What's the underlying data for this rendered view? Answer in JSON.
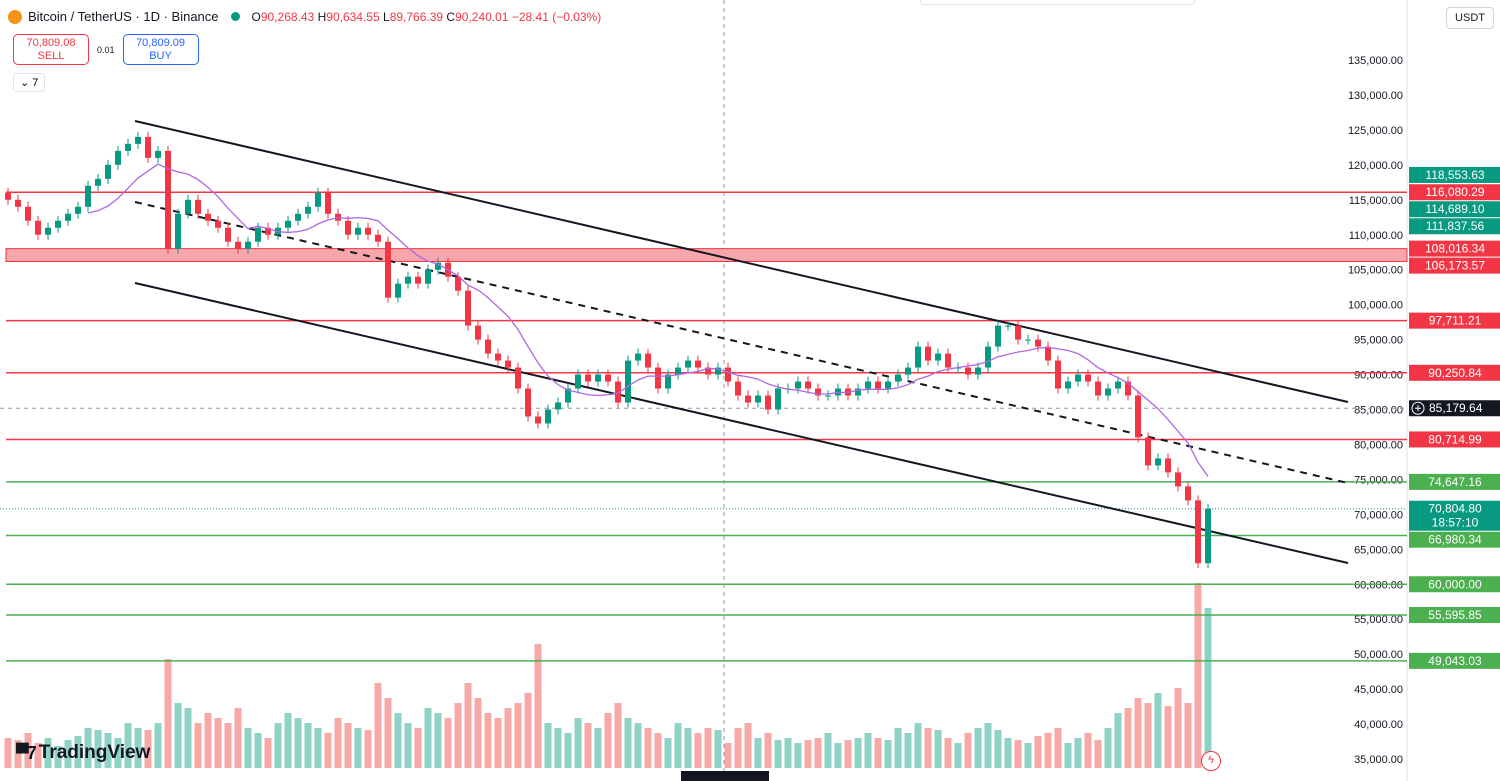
{
  "header": {
    "symbol": "Bitcoin / TetherUS · 1D · Binance",
    "open_label": "O",
    "open": "90,268.43",
    "high_label": "H",
    "high": "90,634.55",
    "low_label": "L",
    "low": "89,766.39",
    "close_label": "C",
    "close": "90,240.01",
    "change": "−28.41 (−0.03%)"
  },
  "trade": {
    "sell_price": "70,809.08",
    "sell_label": "SELL",
    "spread": "0.01",
    "buy_price": "70,809.09",
    "buy_label": "BUY"
  },
  "indicators_toggle": "7",
  "currency": "USDT",
  "logo": "TradingView",
  "colors": {
    "up": "#089981",
    "down": "#f23645",
    "ma": "#b067e0",
    "support": "#4caf50",
    "resistance": "#f23645"
  },
  "chart_data": {
    "type": "candlestick",
    "timeframe": "1D",
    "ylim": [
      35000,
      135000
    ],
    "y_ticks": [
      135000,
      130000,
      125000,
      120000,
      115000,
      110000,
      105000,
      100000,
      95000,
      90000,
      85000,
      80000,
      75000,
      70000,
      65000,
      60000,
      55000,
      50000,
      45000,
      40000,
      35000
    ],
    "closes_thousands": [
      115,
      114,
      112,
      110,
      111,
      112,
      113,
      114,
      117,
      118,
      120,
      122,
      123,
      124,
      121,
      122,
      108,
      113,
      115,
      113,
      112,
      111,
      109,
      108,
      109,
      111,
      110,
      111,
      112,
      113,
      114,
      116,
      113,
      112,
      110,
      111,
      110,
      109,
      101,
      103,
      104,
      103,
      105,
      106,
      104,
      102,
      97,
      95,
      93,
      92,
      91,
      88,
      84,
      83,
      85,
      86,
      88,
      90,
      89,
      90,
      89,
      86,
      92,
      93,
      91,
      88,
      90,
      91,
      92,
      91,
      90,
      91,
      89,
      87,
      86,
      87,
      85,
      88,
      88,
      89,
      88,
      87,
      87,
      88,
      87,
      88,
      89,
      88,
      89,
      90,
      91,
      94,
      92,
      93,
      91,
      91,
      90,
      91,
      94,
      97,
      97,
      95,
      95,
      94,
      92,
      88,
      89,
      90,
      89,
      87,
      88,
      89,
      87,
      81,
      77,
      78,
      76,
      74,
      72,
      63,
      70.8
    ],
    "first_open_thousands": 116,
    "volume_relative": [
      30,
      28,
      35,
      25,
      30,
      22,
      28,
      32,
      40,
      38,
      35,
      30,
      45,
      40,
      38,
      45,
      109,
      65,
      60,
      45,
      55,
      50,
      45,
      60,
      40,
      35,
      30,
      45,
      55,
      50,
      45,
      40,
      35,
      50,
      45,
      40,
      38,
      85,
      70,
      55,
      45,
      40,
      60,
      55,
      50,
      65,
      85,
      70,
      55,
      50,
      60,
      65,
      75,
      124,
      45,
      40,
      35,
      50,
      45,
      40,
      55,
      65,
      50,
      45,
      40,
      35,
      30,
      45,
      40,
      35,
      40,
      38,
      25,
      40,
      45,
      30,
      35,
      28,
      30,
      25,
      28,
      30,
      35,
      25,
      28,
      30,
      35,
      30,
      28,
      40,
      35,
      45,
      40,
      38,
      30,
      25,
      35,
      40,
      45,
      38,
      30,
      28,
      25,
      32,
      35,
      40,
      25,
      30,
      35,
      28,
      40,
      55,
      60,
      70,
      65,
      75,
      62,
      80,
      65,
      185,
      160
    ],
    "moving_average_period": 9,
    "horizontal_levels": [
      {
        "price": 116080.29,
        "label": "116,080.29",
        "kind": "resistance"
      },
      {
        "price": 97711.21,
        "label": "97,711.21",
        "kind": "resistance"
      },
      {
        "price": 90250.84,
        "label": "90,250.84",
        "kind": "resistance"
      },
      {
        "price": 80714.99,
        "label": "80,714.99",
        "kind": "resistance"
      },
      {
        "price": 74647.16,
        "label": "74,647.16",
        "kind": "support"
      },
      {
        "price": 66980.34,
        "label": "66,980.34",
        "kind": "support"
      },
      {
        "price": 60000.0,
        "label": "60,000.00",
        "kind": "support"
      },
      {
        "price": 55595.85,
        "label": "55,595.85",
        "kind": "support"
      },
      {
        "price": 49043.03,
        "label": "49,043.03",
        "kind": "support"
      }
    ],
    "zone": {
      "top": 108016.34,
      "bottom": 106173.57,
      "top_label": "108,016.34",
      "bottom_label": "106,173.57"
    },
    "axis_labels": [
      {
        "price": 118553.63,
        "label": "118,553.63",
        "color": "#089981"
      },
      {
        "price": 114689.1,
        "label": "114,689.10",
        "color": "#089981"
      },
      {
        "price": 111837.56,
        "label": "111,837.56",
        "color": "#089981"
      }
    ],
    "crosshair": {
      "price": 85179.64,
      "label": "85,179.64"
    },
    "last_price": {
      "price": 70804.8,
      "label": "70,804.80",
      "countdown": "18:57:10"
    },
    "trend_channel": {
      "upper": [
        [
          124000,
          0
        ],
        [
          83000,
          1
        ]
      ],
      "note": ""
    }
  }
}
